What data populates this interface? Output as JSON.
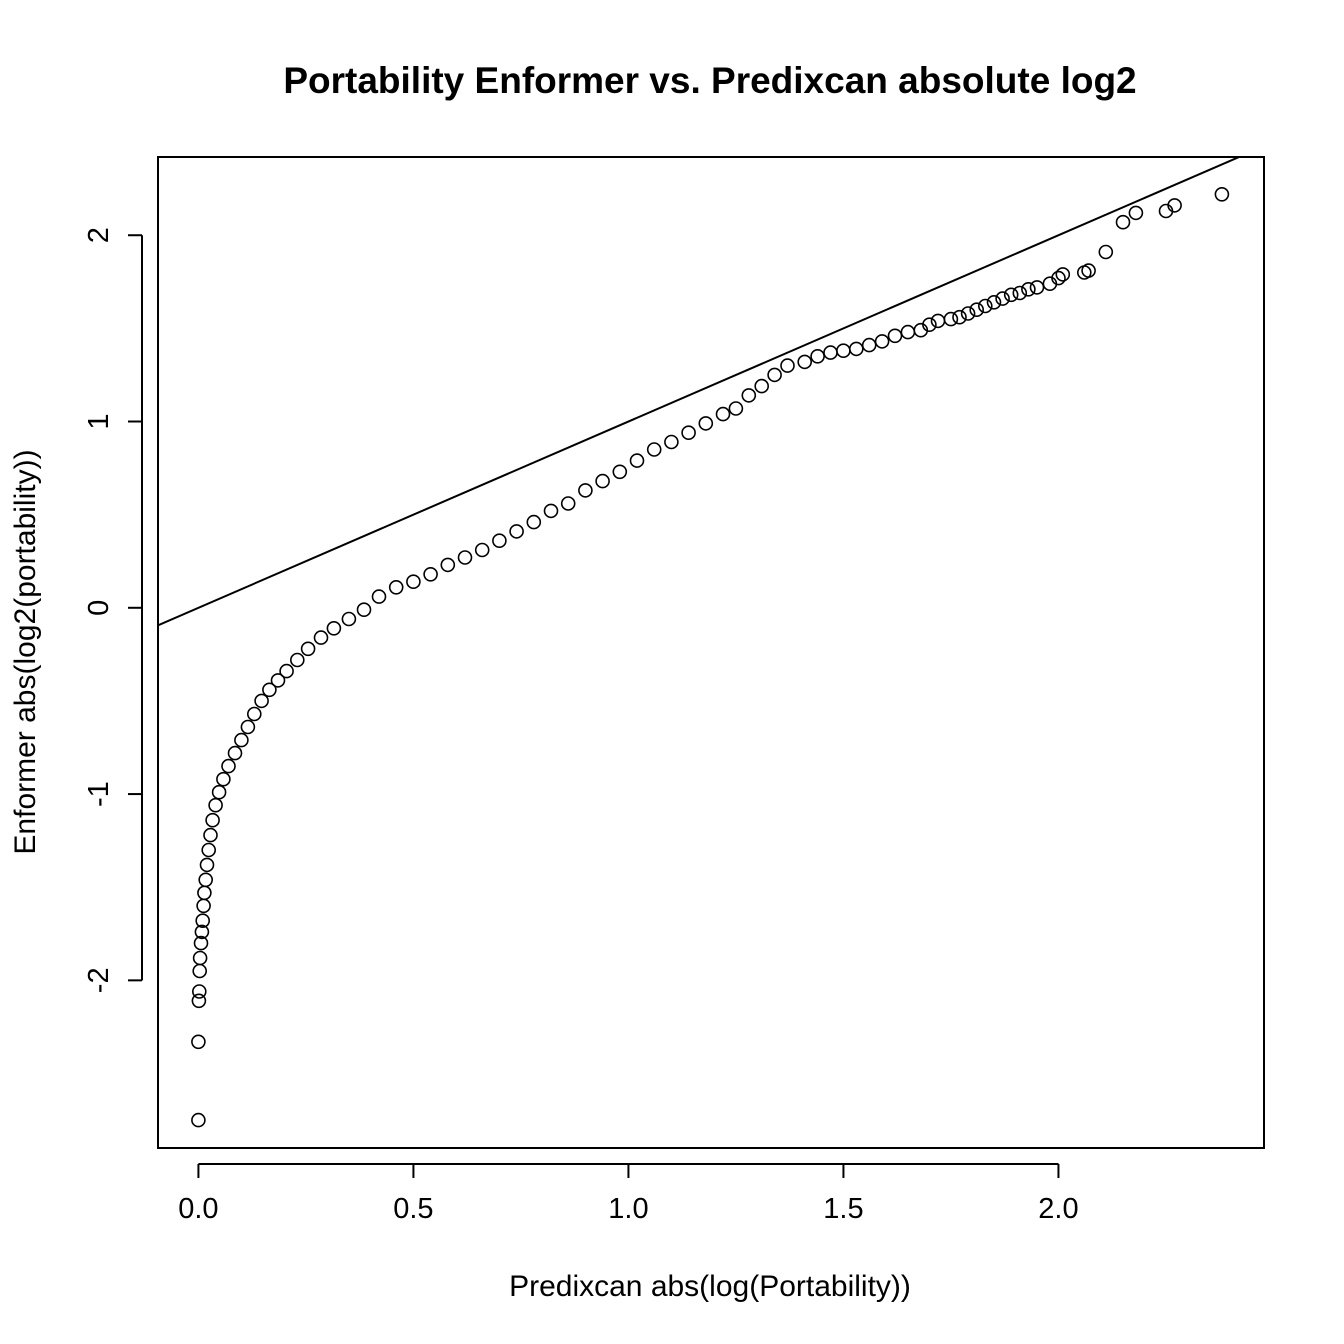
{
  "chart_data": {
    "type": "scatter",
    "title": "Portability Enformer vs. Predixcan absolute log2",
    "xlabel": "Predixcan abs(log(Portability))",
    "ylabel": "Enformer abs(log2(portability))",
    "xlim": [
      -0.094,
      2.478
    ],
    "ylim": [
      -2.9,
      2.42
    ],
    "x_ticks": [
      {
        "value": 0.0,
        "label": "0.0"
      },
      {
        "value": 0.5,
        "label": "0.5"
      },
      {
        "value": 1.0,
        "label": "1.0"
      },
      {
        "value": 1.5,
        "label": "1.5"
      },
      {
        "value": 2.0,
        "label": "2.0"
      }
    ],
    "y_ticks": [
      {
        "value": -2,
        "label": "-2"
      },
      {
        "value": -1,
        "label": "-1"
      },
      {
        "value": 0,
        "label": "0"
      },
      {
        "value": 1,
        "label": "1"
      },
      {
        "value": 2,
        "label": "2"
      }
    ],
    "reference_line": {
      "intercept": 0,
      "slope": 1
    },
    "grid": false,
    "legend": "none",
    "point_shape": "open-circle",
    "point_color": "#000000",
    "points": [
      [
        0.0,
        -2.75
      ],
      [
        0.0,
        -2.33
      ],
      [
        0.001,
        -2.11
      ],
      [
        0.002,
        -2.06
      ],
      [
        0.003,
        -1.95
      ],
      [
        0.004,
        -1.88
      ],
      [
        0.006,
        -1.8
      ],
      [
        0.008,
        -1.74
      ],
      [
        0.01,
        -1.68
      ],
      [
        0.012,
        -1.6
      ],
      [
        0.014,
        -1.53
      ],
      [
        0.017,
        -1.46
      ],
      [
        0.02,
        -1.38
      ],
      [
        0.024,
        -1.3
      ],
      [
        0.028,
        -1.22
      ],
      [
        0.033,
        -1.14
      ],
      [
        0.04,
        -1.06
      ],
      [
        0.048,
        -0.99
      ],
      [
        0.058,
        -0.92
      ],
      [
        0.07,
        -0.85
      ],
      [
        0.085,
        -0.78
      ],
      [
        0.1,
        -0.71
      ],
      [
        0.115,
        -0.64
      ],
      [
        0.13,
        -0.57
      ],
      [
        0.147,
        -0.5
      ],
      [
        0.165,
        -0.44
      ],
      [
        0.185,
        -0.39
      ],
      [
        0.205,
        -0.34
      ],
      [
        0.23,
        -0.28
      ],
      [
        0.255,
        -0.22
      ],
      [
        0.285,
        -0.16
      ],
      [
        0.315,
        -0.11
      ],
      [
        0.35,
        -0.06
      ],
      [
        0.385,
        -0.01
      ],
      [
        0.42,
        0.06
      ],
      [
        0.46,
        0.11
      ],
      [
        0.5,
        0.14
      ],
      [
        0.54,
        0.18
      ],
      [
        0.58,
        0.23
      ],
      [
        0.62,
        0.27
      ],
      [
        0.66,
        0.31
      ],
      [
        0.7,
        0.36
      ],
      [
        0.74,
        0.41
      ],
      [
        0.78,
        0.46
      ],
      [
        0.82,
        0.52
      ],
      [
        0.86,
        0.56
      ],
      [
        0.9,
        0.63
      ],
      [
        0.94,
        0.68
      ],
      [
        0.98,
        0.73
      ],
      [
        1.02,
        0.79
      ],
      [
        1.06,
        0.85
      ],
      [
        1.1,
        0.89
      ],
      [
        1.14,
        0.94
      ],
      [
        1.18,
        0.99
      ],
      [
        1.22,
        1.04
      ],
      [
        1.25,
        1.07
      ],
      [
        1.28,
        1.14
      ],
      [
        1.31,
        1.19
      ],
      [
        1.34,
        1.25
      ],
      [
        1.37,
        1.3
      ],
      [
        1.41,
        1.32
      ],
      [
        1.44,
        1.35
      ],
      [
        1.47,
        1.37
      ],
      [
        1.5,
        1.38
      ],
      [
        1.53,
        1.39
      ],
      [
        1.56,
        1.41
      ],
      [
        1.59,
        1.43
      ],
      [
        1.62,
        1.46
      ],
      [
        1.65,
        1.48
      ],
      [
        1.68,
        1.49
      ],
      [
        1.7,
        1.52
      ],
      [
        1.72,
        1.54
      ],
      [
        1.75,
        1.55
      ],
      [
        1.77,
        1.56
      ],
      [
        1.79,
        1.58
      ],
      [
        1.81,
        1.6
      ],
      [
        1.83,
        1.62
      ],
      [
        1.85,
        1.64
      ],
      [
        1.87,
        1.66
      ],
      [
        1.89,
        1.68
      ],
      [
        1.91,
        1.69
      ],
      [
        1.93,
        1.71
      ],
      [
        1.95,
        1.72
      ],
      [
        1.98,
        1.74
      ],
      [
        2.0,
        1.77
      ],
      [
        2.01,
        1.79
      ],
      [
        2.06,
        1.8
      ],
      [
        2.07,
        1.81
      ],
      [
        2.11,
        1.91
      ],
      [
        2.15,
        2.07
      ],
      [
        2.18,
        2.12
      ],
      [
        2.25,
        2.13
      ],
      [
        2.27,
        2.16
      ],
      [
        2.38,
        2.22
      ]
    ]
  }
}
